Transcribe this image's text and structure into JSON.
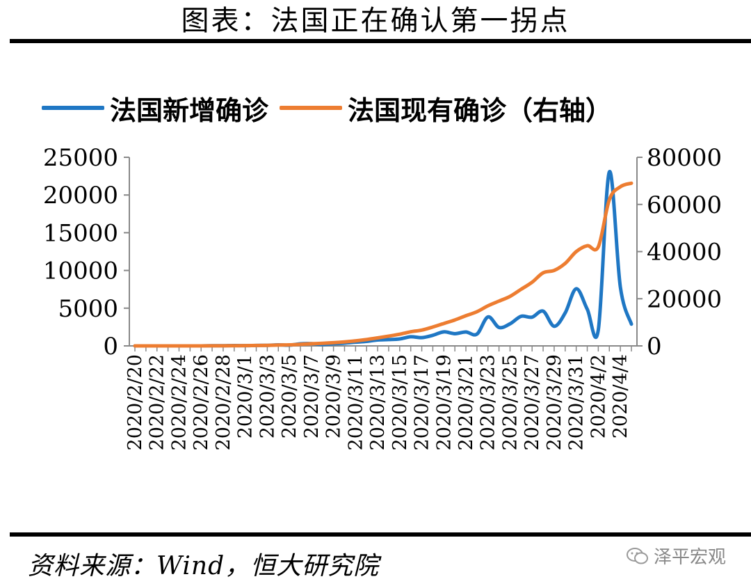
{
  "header": {
    "title": "图表：法国正在确认第一拐点"
  },
  "footer": {
    "source": "资料来源：Wind，恒大研究院",
    "watermark": "泽平宏观",
    "watermark_icon": "wechat-icon"
  },
  "colors": {
    "new_cases": "#1f77c4",
    "active_cases": "#ed7d31"
  },
  "chart_data": {
    "type": "line",
    "x": [
      "2020/2/20",
      "2020/2/21",
      "2020/2/22",
      "2020/2/23",
      "2020/2/24",
      "2020/2/25",
      "2020/2/26",
      "2020/2/27",
      "2020/2/28",
      "2020/2/29",
      "2020/3/1",
      "2020/3/2",
      "2020/3/3",
      "2020/3/4",
      "2020/3/5",
      "2020/3/6",
      "2020/3/7",
      "2020/3/8",
      "2020/3/9",
      "2020/3/10",
      "2020/3/11",
      "2020/3/12",
      "2020/3/13",
      "2020/3/14",
      "2020/3/15",
      "2020/3/16",
      "2020/3/17",
      "2020/3/18",
      "2020/3/19",
      "2020/3/20",
      "2020/3/21",
      "2020/3/22",
      "2020/3/23",
      "2020/3/24",
      "2020/3/25",
      "2020/3/26",
      "2020/3/27",
      "2020/3/28",
      "2020/3/29",
      "2020/3/30",
      "2020/3/31",
      "2020/4/1",
      "2020/4/2",
      "2020/4/3",
      "2020/4/4",
      "2020/4/5"
    ],
    "x_tick_labels": [
      "2020/2/20",
      "2020/2/22",
      "2020/2/24",
      "2020/2/26",
      "2020/2/28",
      "2020/3/1",
      "2020/3/3",
      "2020/3/5",
      "2020/3/7",
      "2020/3/9",
      "2020/3/11",
      "2020/3/13",
      "2020/3/15",
      "2020/3/17",
      "2020/3/19",
      "2020/3/21",
      "2020/3/23",
      "2020/3/25",
      "2020/3/27",
      "2020/3/29",
      "2020/3/31",
      "2020/4/2",
      "2020/4/4"
    ],
    "series": [
      {
        "name": "法国新增确诊",
        "axis": "left",
        "values": [
          0,
          0,
          0,
          0,
          0,
          2,
          2,
          20,
          19,
          43,
          30,
          61,
          73,
          138,
          92,
          276,
          296,
          177,
          286,
          372,
          497,
          595,
          785,
          838,
          924,
          1210,
          1097,
          1404,
          1861,
          1617,
          1847,
          1559,
          3838,
          2446,
          2929,
          3922,
          3809,
          4611,
          2599,
          4376,
          7578,
          4861,
          2116,
          23060,
          7788,
          2886
        ]
      },
      {
        "name": "法国现有确诊（右轴）",
        "axis": "right",
        "values": [
          0,
          0,
          0,
          0,
          0,
          10,
          12,
          30,
          45,
          80,
          120,
          180,
          230,
          360,
          440,
          680,
          930,
          1100,
          1350,
          1700,
          2150,
          2700,
          3400,
          4150,
          4950,
          6000,
          6700,
          8000,
          9500,
          11000,
          12800,
          14500,
          17000,
          19000,
          21000,
          24000,
          27000,
          31000,
          32000,
          35000,
          40000,
          42500,
          42000,
          62000,
          67500,
          69000
        ]
      }
    ],
    "y_left": {
      "min": 0,
      "max": 25000,
      "ticks": [
        "0",
        "5000",
        "10000",
        "15000",
        "20000",
        "25000"
      ]
    },
    "y_right": {
      "min": 0,
      "max": 80000,
      "ticks": [
        "0",
        "20000",
        "40000",
        "60000",
        "80000"
      ]
    },
    "legend_placement": "top",
    "grid": false
  }
}
